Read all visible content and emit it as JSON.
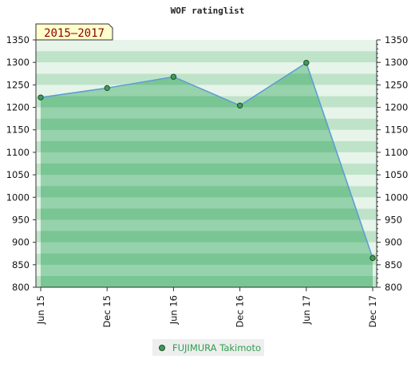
{
  "chart_data": {
    "type": "area",
    "title": "WOF ratinglist",
    "period_badge": "2015–2017",
    "categories": [
      "Jun 15",
      "Dec 15",
      "Jun 16",
      "Dec 16",
      "Jun 17",
      "Dec 17"
    ],
    "series": [
      {
        "name": "FUJIMURA Takimoto",
        "values": [
          1222,
          1243,
          1268,
          1204,
          1299,
          865
        ]
      }
    ],
    "ylim": [
      800,
      1350
    ],
    "yticks": [
      800,
      850,
      900,
      950,
      1000,
      1050,
      1100,
      1150,
      1200,
      1250,
      1300,
      1350
    ],
    "xlabel": "",
    "ylabel": "",
    "legend_position": "bottom-center",
    "grid": false,
    "colors": {
      "line": "#5b9bd5",
      "fill": "#6cc08b",
      "marker": "#3f9c5a",
      "badge_bg": "#ffffcc",
      "band_dark": "#bfe3c8",
      "band_light": "#e6f4ea"
    }
  }
}
